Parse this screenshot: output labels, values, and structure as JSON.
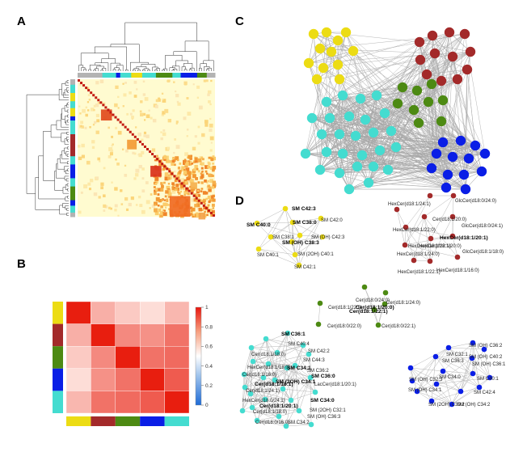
{
  "panels": {
    "a": "A",
    "b": "B",
    "c": "C",
    "d": "D"
  },
  "colors": {
    "yellow": "#ecdc14",
    "darkred": "#a32a2a",
    "green": "#4d8a13",
    "blue": "#0a1ee6",
    "cyan": "#44dcd0",
    "gray": "#b3b3b3",
    "edge": "#a8a8a8"
  },
  "chart_data": {
    "type": "heatmap",
    "title": "",
    "clusters": [
      "yellow",
      "darkred",
      "green",
      "blue",
      "cyan"
    ],
    "matrix": [
      [
        1.0,
        0.62,
        0.55,
        0.5,
        0.6
      ],
      [
        0.62,
        1.0,
        0.72,
        0.7,
        0.78
      ],
      [
        0.55,
        0.72,
        1.0,
        0.78,
        0.8
      ],
      [
        0.5,
        0.7,
        0.78,
        1.0,
        0.84
      ],
      [
        0.6,
        0.78,
        0.8,
        0.84,
        1.0
      ]
    ],
    "colorbar": {
      "min": 0,
      "max": 1,
      "ticks": [
        "1",
        "0.8",
        "0.6",
        "0.4",
        "0.2",
        "0"
      ]
    }
  },
  "d_labels": {
    "yellow": [
      {
        "t": "SM C42:3",
        "b": true
      },
      {
        "t": "SM C40:0",
        "b": true
      },
      {
        "t": "SM C38:0",
        "b": true
      },
      {
        "t": "SM C42:0",
        "b": false
      },
      {
        "t": "SM C38:1",
        "b": false
      },
      {
        "t": "SM (OH) C42:3",
        "b": false
      },
      {
        "t": "SM (OH) C38:3",
        "b": true
      },
      {
        "t": "SM C40:1",
        "b": false
      },
      {
        "t": "SM (2OH) C40:1",
        "b": false
      },
      {
        "t": "SM C42:1",
        "b": false
      }
    ],
    "red": [
      {
        "t": "HexCer(d18:1/24:1)",
        "b": false
      },
      {
        "t": "GlcCer(d18:0/24:0)",
        "b": false
      },
      {
        "t": "Cer(d18:1/20:0)",
        "b": false
      },
      {
        "t": "HexCer(d18:1/22:0)",
        "b": false
      },
      {
        "t": "GlcCer(d18:0/24:1)",
        "b": false
      },
      {
        "t": "HexCer(d18:1/20:1)",
        "b": true
      },
      {
        "t": "HexCer(d18:1/22:1)",
        "b": false
      },
      {
        "t": "HexCer(d18:1/20:0)",
        "b": false
      },
      {
        "t": "HexCer(d18:1/24:0)",
        "b": false
      },
      {
        "t": "GlcCer(d18:1/18:0)",
        "b": false
      },
      {
        "t": "HexCer(d18:1/22:1)",
        "b": false
      },
      {
        "t": "HexCer(d18:1/16:0)",
        "b": false
      }
    ],
    "green": [
      {
        "t": "Cer(d18:0/24:0)",
        "b": false
      },
      {
        "t": "Cer(d18:1/24:0)",
        "b": false
      },
      {
        "t": "Cer(d18:1/22:0)",
        "b": false
      },
      {
        "t": "Cer(d18:1/20:0)",
        "b": true
      },
      {
        "t": "Cer(d18:1/22:1)",
        "b": true
      },
      {
        "t": "Cer(d18:0/22:0)",
        "b": false
      },
      {
        "t": "Cer(d18:0/22:1)",
        "b": false
      }
    ],
    "cyan": [
      {
        "t": "SM C36:1",
        "b": true
      },
      {
        "t": "SM C40:4",
        "b": false
      },
      {
        "t": "Cer(d18:1/18:0)",
        "b": false
      },
      {
        "t": "SM C42:2",
        "b": false
      },
      {
        "t": "SM C44:3",
        "b": false
      },
      {
        "t": "HexCer(d18:1/18:0)",
        "b": false
      },
      {
        "t": "Cer(d18:1/16:0)",
        "b": false
      },
      {
        "t": "SM C34:1",
        "b": true
      },
      {
        "t": "SM C36:2",
        "b": false
      },
      {
        "t": "SM C36:0",
        "b": true
      },
      {
        "t": "SM (2OH) C34:1",
        "b": true
      },
      {
        "t": "Cer(d18:1/18:1)",
        "b": true
      },
      {
        "t": "LacCer(d18:1/20:1)",
        "b": false
      },
      {
        "t": "Cer(d18:1/24:1)",
        "b": false
      },
      {
        "t": "SM C34:0",
        "b": true
      },
      {
        "t": "SM (2OH) C32:1",
        "b": false
      },
      {
        "t": "HexCer(d18:0/24:1)",
        "b": false
      },
      {
        "t": "Cer(d18:1/20:1)",
        "b": true
      },
      {
        "t": "Cer(d18:1/18:0)",
        "b": false
      },
      {
        "t": "SM (OH) C36:3",
        "b": false
      },
      {
        "t": "Cer(d18:0/16:0)",
        "b": false
      },
      {
        "t": "SM C34:2",
        "b": false
      }
    ],
    "blue": [
      {
        "t": "SM (OH) C36:2",
        "b": false
      },
      {
        "t": "SM C32:1",
        "b": false
      },
      {
        "t": "SM (OH) C40:2",
        "b": false
      },
      {
        "t": "SM C36:3",
        "b": false
      },
      {
        "t": "SM (OH) C36:1",
        "b": false
      },
      {
        "t": "SM (OH) C32:3",
        "b": false
      },
      {
        "t": "SM C34:0",
        "b": false
      },
      {
        "t": "SM C40:1",
        "b": false
      },
      {
        "t": "SM (OH) C34:1",
        "b": false
      },
      {
        "t": "SM C42:4",
        "b": false
      },
      {
        "t": "SM (2OH) C30:2",
        "b": false
      },
      {
        "t": "SM (OH) C34:2",
        "b": false
      }
    ]
  }
}
